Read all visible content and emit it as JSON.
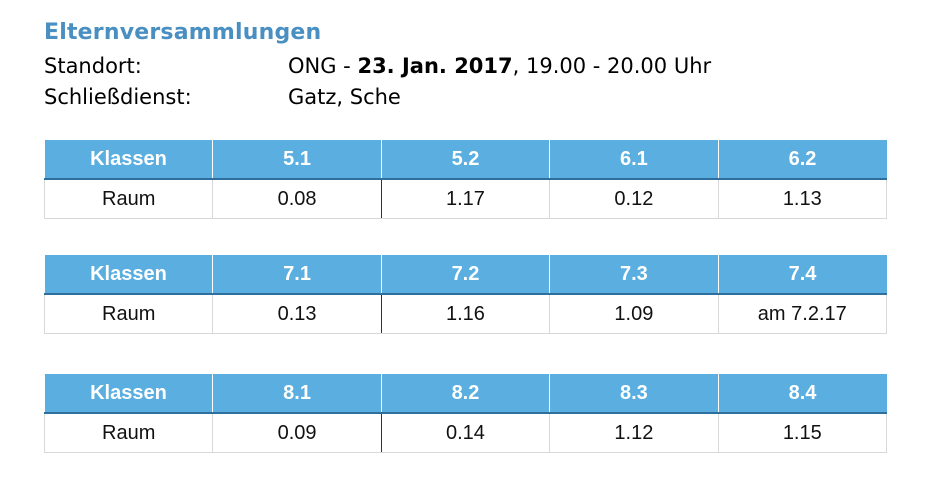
{
  "title": "Elternversammlungen",
  "info": {
    "standort_label": "Standort:",
    "standort_prefix": "ONG - ",
    "standort_date": "23. Jan. 2017",
    "standort_time": ", 19.00 - 20.00 Uhr",
    "schliessdienst_label": "Schließdienst:",
    "schliessdienst_value": "Gatz, Sche"
  },
  "tables": [
    {
      "header": [
        "Klassen",
        "5.1",
        "5.2",
        "6.1",
        "6.2"
      ],
      "row": [
        "Raum",
        "0.08",
        "1.17",
        "0.12",
        "1.13"
      ]
    },
    {
      "header": [
        "Klassen",
        "7.1",
        "7.2",
        "7.3",
        "7.4"
      ],
      "row": [
        "Raum",
        "0.13",
        "1.16",
        "1.09",
        "am 7.2.17"
      ]
    },
    {
      "header": [
        "Klassen",
        "8.1",
        "8.2",
        "8.3",
        "8.4"
      ],
      "row": [
        "Raum",
        "0.09",
        "0.14",
        "1.12",
        "1.15"
      ]
    }
  ]
}
